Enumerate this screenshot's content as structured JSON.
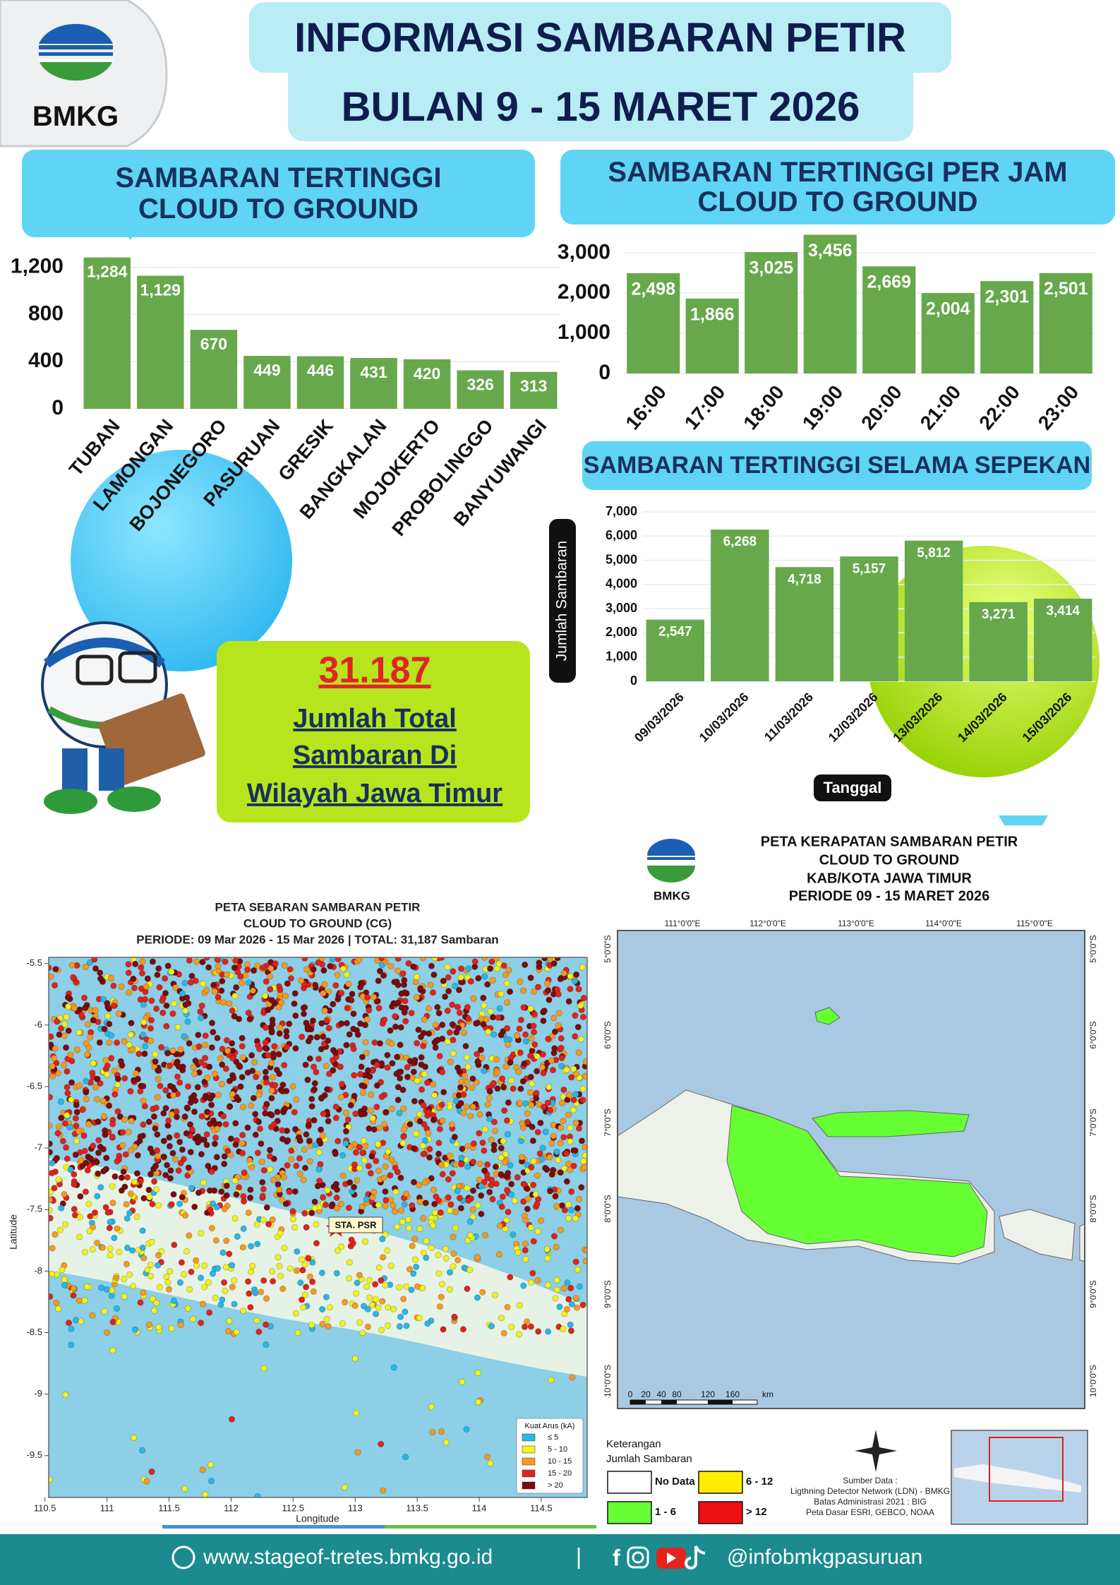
{
  "header": {
    "logo_text": "BMKG",
    "title_line1": "INFORMASI SAMBARAN PETIR",
    "title_line2": "BULAN 9 - 15 MARET 2026"
  },
  "chart_data": [
    {
      "type": "bar",
      "title": "SAMBARAN TERTINGGI  CLOUD TO GROUND",
      "categories": [
        "TUBAN",
        "LAMONGAN",
        "BOJONEGORO",
        "PASURUAN",
        "GRESIK",
        "BANGKALAN",
        "MOJOKERTO",
        "PROBOLINGGO",
        "BANYUWANGI"
      ],
      "values": [
        1284,
        1129,
        670,
        449,
        446,
        431,
        420,
        326,
        313
      ],
      "value_labels": [
        "1,284",
        "1,129",
        "670",
        "449",
        "446",
        "431",
        "420",
        "326",
        "313"
      ],
      "color": "#66a84b",
      "ylim": [
        0,
        1300
      ],
      "yticks": [
        0,
        400,
        800,
        {
          "value": 1200,
          "label": "1,200"
        }
      ],
      "grid": true
    },
    {
      "type": "bar",
      "title": "SAMBARAN TERTINGGI PER JAM CLOUD TO GROUND",
      "categories": [
        "16:00",
        "17:00",
        "18:00",
        "19:00",
        "20:00",
        "21:00",
        "22:00",
        "23:00"
      ],
      "values": [
        2498,
        1866,
        3025,
        3456,
        2669,
        2004,
        2301,
        2501
      ],
      "value_labels": [
        "2,498",
        "1,866",
        "3,025",
        "3,456",
        "2,669",
        "2,004",
        "2,301",
        "2,501"
      ],
      "color": "#66a84b",
      "ylim": [
        0,
        3500
      ],
      "yticks": [
        0,
        {
          "value": 1000,
          "label": "1,000"
        },
        {
          "value": 2000,
          "label": "2,000"
        },
        {
          "value": 3000,
          "label": "3,000"
        }
      ],
      "grid": true
    },
    {
      "type": "bar",
      "title": "SAMBARAN TERTINGGI SELAMA SEPEKAN",
      "y_label": "Jumlah Sambaran",
      "x_label": "Tanggal",
      "categories": [
        "09/03/2026",
        "10/03/2026",
        "11/03/2026",
        "12/03/2026",
        "13/03/2026",
        "14/03/2026",
        "15/03/2026"
      ],
      "values": [
        2547,
        6268,
        4718,
        5157,
        5812,
        3271,
        3414
      ],
      "value_labels": [
        "2,547",
        "6,268",
        "4,718",
        "5,157",
        "5,812",
        "3,271",
        "3,414"
      ],
      "color": "#66a84b",
      "ylim": [
        0,
        7000
      ],
      "yticks": [
        0,
        {
          "value": 1000,
          "label": "1,000"
        },
        {
          "value": 2000,
          "label": "2,000"
        },
        {
          "value": 3000,
          "label": "3,000"
        },
        {
          "value": 4000,
          "label": "4,000"
        },
        {
          "value": 5000,
          "label": "5,000"
        },
        {
          "value": 6000,
          "label": "6,000"
        },
        {
          "value": 7000,
          "label": "7,000"
        }
      ],
      "grid": true
    }
  ],
  "total": {
    "value": "31.187",
    "line1": "Jumlah Total",
    "line2": "Sambaran Di",
    "line3": "Wilayah Jawa Timur"
  },
  "map_sebaran": {
    "title_line1": "PETA SEBARAN SAMBARAN PETIR",
    "title_line2": "CLOUD TO GROUND (CG)",
    "title_line3": "PERIODE: 09 Mar 2026 - 15 Mar 2026 | TOTAL: 31,187 Sambaran",
    "x_label": "Longitude",
    "y_label": "Latitude",
    "xlim": [
      110.53,
      114.87
    ],
    "ylim": [
      -9.84,
      -5.45
    ],
    "xticks": [
      110.5,
      111.0,
      111.5,
      112.0,
      112.5,
      113.0,
      113.5,
      114.0,
      114.5
    ],
    "yticks": [
      -5.5,
      -6.0,
      -6.5,
      -7.0,
      -7.5,
      -8.0,
      -8.5,
      -9.0,
      -9.5
    ],
    "station": "STA. PSR",
    "legend_title": "Kuat Arus (kA)",
    "legend": [
      {
        "label": "≤ 5",
        "color": "#29b6e8"
      },
      {
        "label": "5 - 10",
        "color": "#f2f21c"
      },
      {
        "label": "10 - 15",
        "color": "#f59a1c"
      },
      {
        "label": "15 - 20",
        "color": "#e0221c"
      },
      {
        "label": "> 20",
        "color": "#7a0c0c"
      }
    ]
  },
  "map_kerapatan": {
    "logo_text": "BMKG",
    "title_line1": "PETA KERAPATAN SAMBARAN PETIR",
    "title_line2": "CLOUD TO GROUND",
    "title_line3": "KAB/KOTA JAWA TIMUR",
    "title_line4": "PERIODE 09 - 15 MARET 2026",
    "lon_labels": [
      "111°0'0\"E",
      "112°0'0\"E",
      "113°0'0\"E",
      "114°0'0\"E",
      "115°0'0\"E"
    ],
    "lat_labels": [
      "5°0'0\"S",
      "6°0'0\"S",
      "7°0'0\"S",
      "8°0'0\"S",
      "9°0'0\"S",
      "10°0'0\"S"
    ],
    "scale_labels": [
      "0",
      "20",
      "40",
      "80",
      "120",
      "160",
      "km"
    ],
    "legend_title1": "Keterangan",
    "legend_title2": "Jumlah Sambaran",
    "legend": [
      {
        "label": "No Data",
        "color": "#ffffff"
      },
      {
        "label": "1 - 6",
        "color": "#66ff33"
      },
      {
        "label": "6 - 12",
        "color": "#ffee00"
      },
      {
        "label": "> 12",
        "color": "#ee1111"
      }
    ],
    "source": [
      "Sumber Data :",
      "Ligthning Detector Network (LDN) - BMKG",
      "Batas Administrasi 2021 : BIG",
      "Peta Dasar ESRI, GEBCO, NOAA"
    ]
  },
  "footer": {
    "website": "www.stageof-tretes.bmkg.go.id",
    "separator": "|",
    "handle": "@infobmkgpasuruan"
  }
}
